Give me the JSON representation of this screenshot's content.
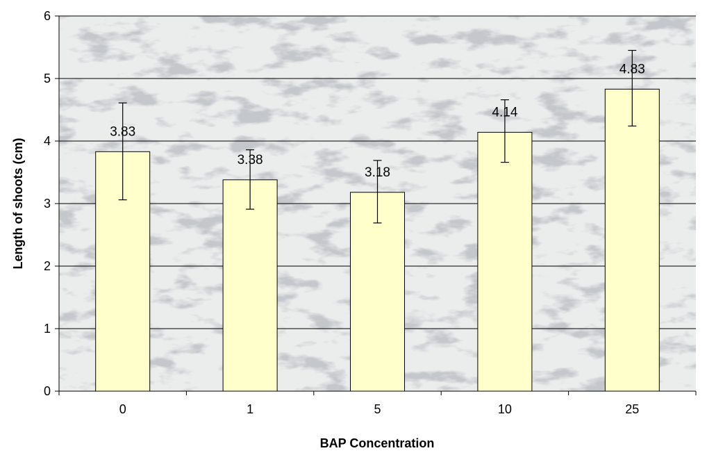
{
  "chart_data": {
    "type": "bar",
    "title": "",
    "xlabel": "BAP Concentration",
    "ylabel": "Length of shoots (cm)",
    "categories": [
      "0",
      "1",
      "5",
      "10",
      "25"
    ],
    "values": [
      3.83,
      3.38,
      3.18,
      4.14,
      4.83
    ],
    "value_labels": [
      "3.83",
      "3.38",
      "3.18",
      "4.14",
      "4.83"
    ],
    "error_low": [
      3.06,
      2.91,
      2.69,
      3.66,
      4.24
    ],
    "error_high": [
      4.61,
      3.86,
      3.69,
      4.66,
      5.45
    ],
    "ylim": [
      0,
      6
    ],
    "yticks": [
      "0",
      "1",
      "2",
      "3",
      "4",
      "5",
      "6"
    ],
    "grid": "horizontal",
    "legend": "none",
    "colors": {
      "bar_fill": "#ffffcc",
      "bar_stroke": "#000000",
      "grid": "#000000",
      "plot_background": "marble-texture"
    }
  }
}
